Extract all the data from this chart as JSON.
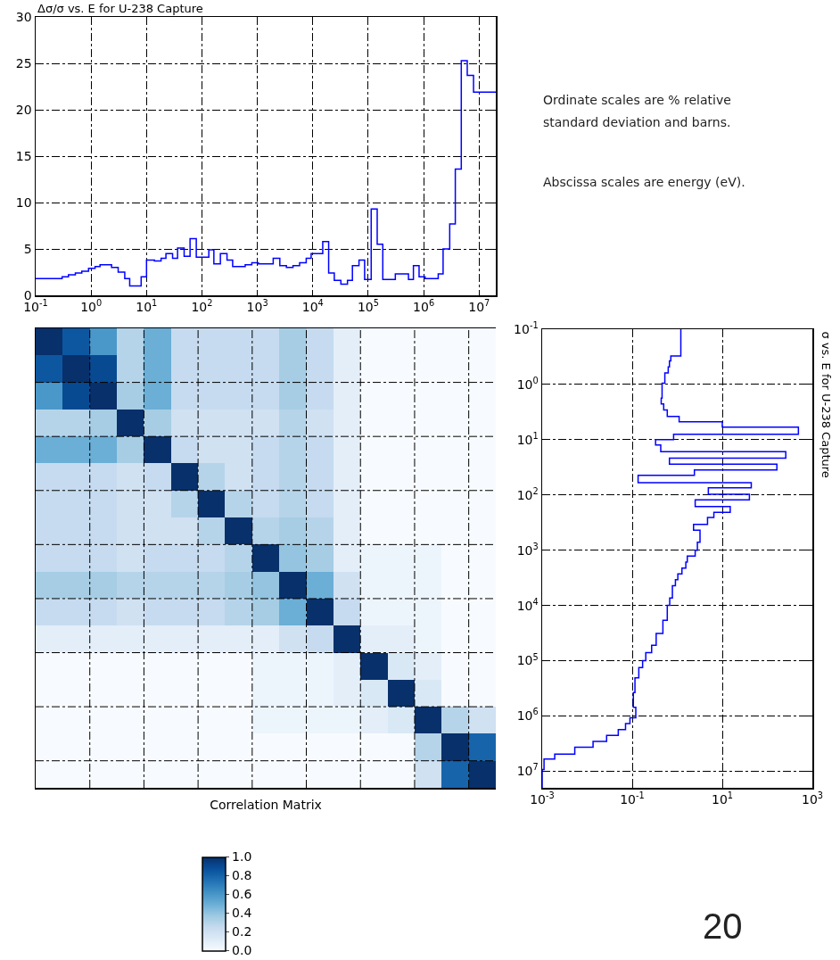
{
  "chart_data": [
    {
      "type": "step",
      "title": "Δσ/σ vs. E for U-238 Capture",
      "xlim": [
        0.1,
        20000000
      ],
      "ylim": [
        0,
        30
      ],
      "log": "x",
      "grid": true,
      "xticks": [
        {
          "value": 0.1,
          "label": "10$^{-1}$"
        },
        {
          "value": 1,
          "label": "10$^{0}$"
        },
        {
          "value": 10,
          "label": "10$^{1}$"
        },
        {
          "value": 100,
          "label": "10$^{2}$"
        },
        {
          "value": 1000,
          "label": "10$^{3}$"
        },
        {
          "value": 10000,
          "label": "10$^{4}$"
        },
        {
          "value": 100000,
          "label": "10$^{5}$"
        },
        {
          "value": 1000000,
          "label": "10$^{6}$"
        },
        {
          "value": 10000000,
          "label": "10$^{7}$"
        }
      ],
      "yticks": [
        0,
        5,
        10,
        15,
        20,
        25,
        30
      ],
      "series": [
        {
          "color": "#0000ff",
          "x": [
            0.1,
            0.3,
            0.39,
            0.52,
            0.68,
            0.9,
            1.18,
            1.45,
            2.34,
            3.08,
            4.05,
            4.97,
            8.0,
            10,
            13.9,
            18.3,
            22.4,
            29.5,
            36.3,
            47.7,
            61,
            79,
            133,
            164,
            215,
            283,
            358,
            603,
            793,
            1042,
            1930,
            2540,
            3340,
            4390,
            5780,
            7600,
            9330,
            15100,
            19300,
            24400,
            32100,
            42200,
            51800,
            68100,
            86000,
            113000,
            145000,
            183000,
            308000,
            532000,
            653000,
            826000,
            1060000,
            1830000,
            2240000,
            2950000,
            3720000,
            4770000,
            6110000,
            7930000,
            20000000
          ],
          "values": [
            1.8,
            2.0,
            2.2,
            2.4,
            2.6,
            2.9,
            3.1,
            3.3,
            3.0,
            2.5,
            1.8,
            1.0,
            2.0,
            3.8,
            3.7,
            4.0,
            4.5,
            4.0,
            5.1,
            4.2,
            6.1,
            4.1,
            4.9,
            3.4,
            4.5,
            3.8,
            3.1,
            3.3,
            3.5,
            3.4,
            4.0,
            3.2,
            3.0,
            3.2,
            3.5,
            4.0,
            4.5,
            5.8,
            2.4,
            1.6,
            1.2,
            1.6,
            3.2,
            3.8,
            1.7,
            9.3,
            5.5,
            1.7,
            2.3,
            1.7,
            3.2,
            2.0,
            1.8,
            2.3,
            5.0,
            7.7,
            13.6,
            25.3,
            23.7,
            21.9,
            21.9
          ]
        }
      ]
    },
    {
      "type": "heatmap",
      "xlabel": "Correlation Matrix",
      "grid": true,
      "clim": [
        0,
        1
      ],
      "cticks": [
        {
          "value": 0,
          "label": "0.0"
        },
        {
          "value": 0.2,
          "label": "0.2"
        },
        {
          "value": 0.4,
          "label": "0.4"
        },
        {
          "value": 0.6,
          "label": "0.6"
        },
        {
          "value": 0.8,
          "label": "0.8"
        },
        {
          "value": 1,
          "label": "1.0"
        }
      ],
      "categories": [
        null,
        null,
        null,
        null,
        null,
        null,
        null,
        null,
        null,
        null,
        null,
        null,
        null,
        null,
        null,
        null,
        null
      ],
      "y_categories": [
        null,
        null,
        null,
        null,
        null,
        null,
        null,
        null,
        null,
        null,
        null,
        null,
        null,
        null,
        null,
        null,
        null
      ],
      "cells": [
        [
          1,
          0.85,
          0.6,
          0.3,
          0.5,
          0.25,
          0.25,
          0.25,
          0.25,
          0.35,
          0.25,
          0.1,
          0,
          0,
          0,
          0,
          0
        ],
        [
          0.85,
          1,
          0.9,
          0.3,
          0.5,
          0.25,
          0.25,
          0.25,
          0.25,
          0.35,
          0.25,
          0.1,
          0,
          0,
          0,
          0,
          0
        ],
        [
          0.6,
          0.9,
          1,
          0.35,
          0.5,
          0.25,
          0.25,
          0.25,
          0.25,
          0.35,
          0.25,
          0.1,
          0,
          0,
          0,
          0,
          0
        ],
        [
          0.3,
          0.3,
          0.35,
          1,
          0.35,
          0.2,
          0.2,
          0.2,
          0.2,
          0.3,
          0.2,
          0.1,
          0,
          0,
          0,
          0,
          0
        ],
        [
          0.5,
          0.5,
          0.5,
          0.35,
          1,
          0.25,
          0.2,
          0.2,
          0.25,
          0.3,
          0.25,
          0.1,
          0,
          0,
          0,
          0,
          0
        ],
        [
          0.25,
          0.25,
          0.25,
          0.2,
          0.25,
          1,
          0.3,
          0.2,
          0.25,
          0.3,
          0.25,
          0.1,
          0,
          0,
          0,
          0,
          0
        ],
        [
          0.25,
          0.25,
          0.25,
          0.2,
          0.2,
          0.3,
          1,
          0.3,
          0.25,
          0.3,
          0.25,
          0.1,
          0,
          0,
          0,
          0,
          0
        ],
        [
          0.25,
          0.25,
          0.25,
          0.2,
          0.2,
          0.2,
          0.3,
          1,
          0.3,
          0.35,
          0.3,
          0.1,
          0,
          0,
          0,
          0,
          0
        ],
        [
          0.25,
          0.25,
          0.25,
          0.2,
          0.25,
          0.25,
          0.25,
          0.3,
          1,
          0.4,
          0.35,
          0.1,
          0.05,
          0.05,
          0.05,
          0,
          0
        ],
        [
          0.35,
          0.35,
          0.35,
          0.3,
          0.3,
          0.3,
          0.3,
          0.35,
          0.4,
          1,
          0.5,
          0.2,
          0.05,
          0.05,
          0.05,
          0,
          0
        ],
        [
          0.25,
          0.25,
          0.25,
          0.2,
          0.25,
          0.25,
          0.25,
          0.3,
          0.35,
          0.5,
          1,
          0.25,
          0.05,
          0.05,
          0.05,
          0,
          0
        ],
        [
          0.1,
          0.1,
          0.1,
          0.1,
          0.1,
          0.1,
          0.1,
          0.1,
          0.1,
          0.2,
          0.25,
          1,
          0.1,
          0.1,
          0.05,
          0,
          0
        ],
        [
          0,
          0,
          0,
          0,
          0,
          0,
          0,
          0,
          0.05,
          0.05,
          0.05,
          0.1,
          1,
          0.15,
          0.1,
          0,
          0
        ],
        [
          0,
          0,
          0,
          0,
          0,
          0,
          0,
          0,
          0.05,
          0.05,
          0.05,
          0.1,
          0.15,
          1,
          0.15,
          0,
          0
        ],
        [
          0,
          0,
          0,
          0,
          0,
          0,
          0,
          0,
          0.05,
          0.05,
          0.05,
          0.05,
          0.1,
          0.15,
          1,
          0.3,
          0.2
        ],
        [
          0,
          0,
          0,
          0,
          0,
          0,
          0,
          0,
          0,
          0,
          0,
          0,
          0,
          0,
          0.3,
          1,
          0.8
        ],
        [
          0,
          0,
          0,
          0,
          0,
          0,
          0,
          0,
          0,
          0,
          0,
          0,
          0,
          0,
          0.2,
          0.8,
          1
        ]
      ]
    },
    {
      "type": "line",
      "title": "σ vs. E for U-238 Capture",
      "log": "xy",
      "grid": true,
      "xlim": [
        0.001,
        1000
      ],
      "ylim": [
        20000000,
        0.1
      ],
      "xticks": [
        {
          "value": 0.001,
          "label": "10$^{-3}$"
        },
        {
          "value": 0.1,
          "label": "10$^{-1}$"
        },
        {
          "value": 10,
          "label": "10$^{1}$"
        },
        {
          "value": 1000,
          "label": "10$^{3}$"
        }
      ],
      "yticks": [
        {
          "value": 0.1,
          "label": "10$^{-1}$"
        },
        {
          "value": 1,
          "label": "10$^{0}$"
        },
        {
          "value": 10,
          "label": "10$^{1}$"
        },
        {
          "value": 100,
          "label": "10$^{2}$"
        },
        {
          "value": 1000,
          "label": "10$^{3}$"
        },
        {
          "value": 10000,
          "label": "10$^{4}$"
        },
        {
          "value": 100000,
          "label": "10$^{5}$"
        },
        {
          "value": 1000000,
          "label": "10$^{6}$"
        },
        {
          "value": 10000000,
          "label": "10$^{7}$"
        }
      ],
      "series": [
        {
          "color": "#0000ff",
          "x": [
            1.2,
            1.2,
            0.72,
            0.72,
            0.67,
            0.67,
            0.63,
            0.63,
            0.53,
            0.53,
            0.46,
            0.46,
            0.44,
            0.44,
            0.5,
            0.5,
            0.6,
            0.6,
            1.1,
            1.1,
            10,
            10,
            490,
            490,
            0.83,
            0.83,
            0.33,
            0.33,
            0.43,
            0.43,
            257,
            257,
            0.67,
            0.67,
            163,
            163,
            2.4,
            2.4,
            0.135,
            0.135,
            44,
            44,
            4.9,
            4.9,
            40,
            40,
            2.5,
            2.5,
            15,
            15,
            6.5,
            6.5,
            4.7,
            4.7,
            2.3,
            2.3,
            3.2,
            3.2,
            2.8,
            2.8,
            2.5,
            2.5,
            1.67,
            1.67,
            1.55,
            1.55,
            1.27,
            1.27,
            1.03,
            1.03,
            0.91,
            0.91,
            0.78,
            0.78,
            0.68,
            0.68,
            0.6,
            0.6,
            0.48,
            0.48,
            0.34,
            0.34,
            0.27,
            0.27,
            0.2,
            0.2,
            0.17,
            0.17,
            0.14,
            0.14,
            0.115,
            0.115,
            0.106,
            0.106,
            0.12,
            0.12,
            0.089,
            0.089,
            0.071,
            0.071,
            0.049,
            0.049,
            0.027,
            0.027,
            0.0135,
            0.0135,
            0.0053,
            0.0053,
            0.0019,
            0.0019,
            0.0011,
            0.0011,
            0.001,
            0.001
          ],
          "values": [
            0.1,
            0.305,
            0.305,
            0.376,
            0.376,
            0.48,
            0.48,
            0.62,
            0.62,
            0.95,
            0.95,
            1.77,
            1.77,
            2.26,
            2.26,
            2.9,
            2.9,
            3.8,
            3.8,
            4.75,
            4.75,
            5.9,
            5.9,
            8.0,
            8.0,
            10,
            10,
            12.5,
            12.5,
            16.4,
            16.4,
            21.5,
            21.5,
            27.6,
            27.6,
            35.3,
            35.3,
            44,
            44,
            60,
            60,
            74,
            74,
            97,
            97,
            123,
            123,
            162,
            162,
            207,
            207,
            256,
            256,
            340,
            340,
            436,
            436,
            716,
            716,
            1000,
            1000,
            1280,
            1280,
            1640,
            1640,
            2100,
            2100,
            2680,
            2680,
            3430,
            3430,
            4390,
            4390,
            7350,
            7350,
            10000,
            10000,
            18500,
            18500,
            32200,
            32200,
            52700,
            52700,
            71800,
            71800,
            100000,
            100000,
            133000,
            133000,
            204000,
            204000,
            378000,
            378000,
            700000,
            700000,
            1080000,
            1080000,
            1380000,
            1380000,
            1760000,
            1760000,
            2250000,
            2250000,
            2880000,
            2880000,
            3690000,
            3690000,
            4900000,
            4900000,
            6030000,
            6030000,
            9300000,
            9300000,
            20000000
          ]
        }
      ]
    },
    {
      "type": "other",
      "annotations": [
        "Ordinate scales are % relative standard deviation and barns.",
        "Abscissa scales are energy (eV).",
        "20"
      ]
    }
  ]
}
